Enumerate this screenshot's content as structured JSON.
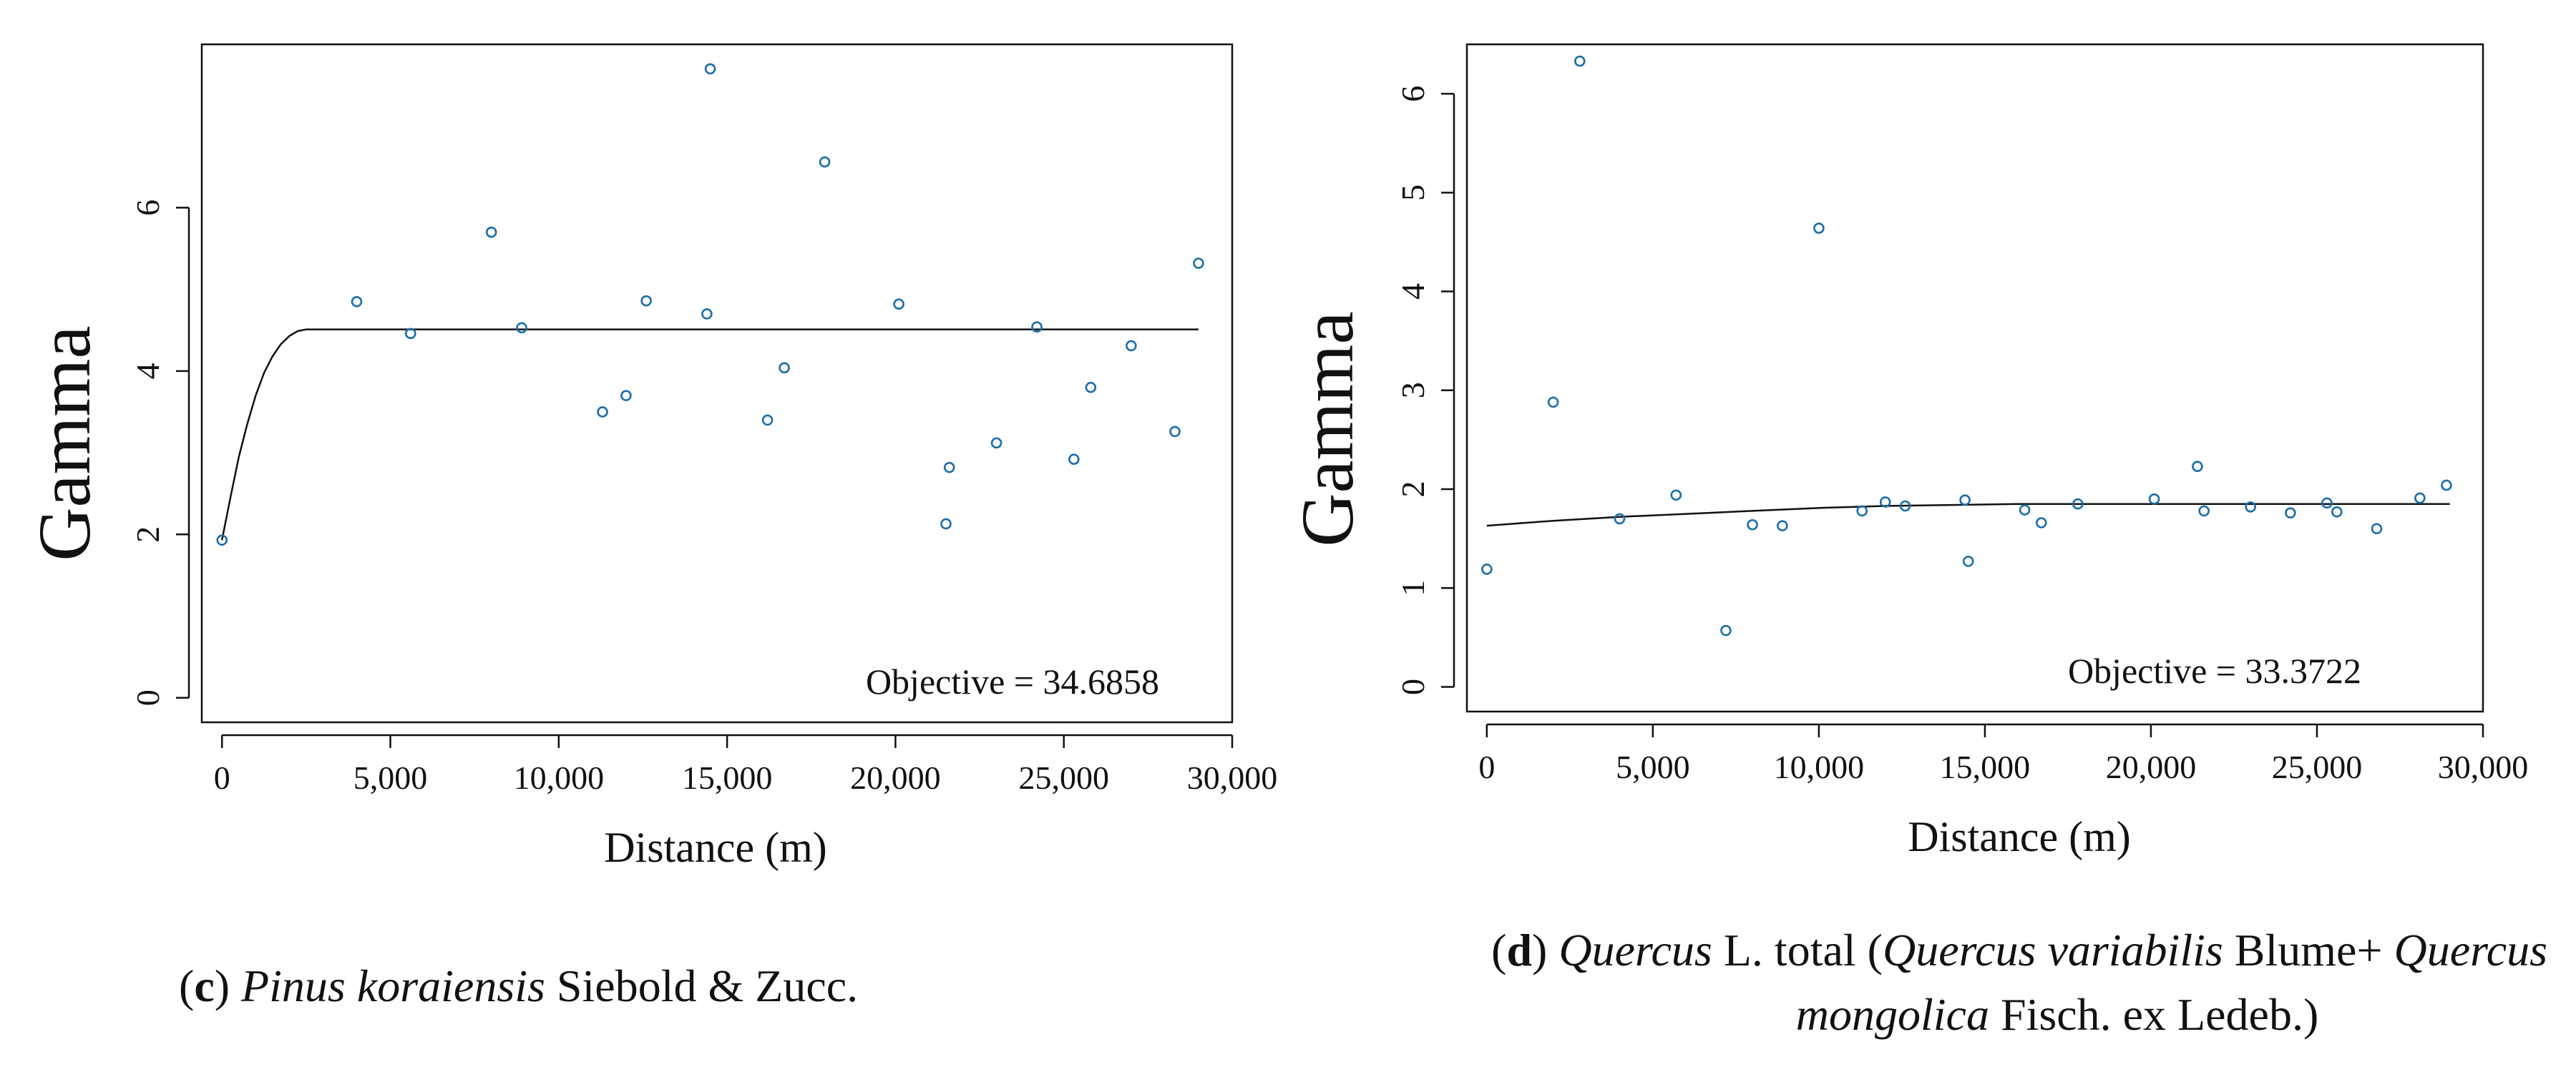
{
  "chart_data": [
    {
      "type": "scatter",
      "panel": "c",
      "xlabel": "Distance (m)",
      "ylabel": "Gamma",
      "xlim": [
        -600,
        30000
      ],
      "ylim": [
        -0.3,
        8.0
      ],
      "xticks": [
        0,
        5000,
        10000,
        15000,
        20000,
        25000,
        30000
      ],
      "xtick_labels": [
        "0",
        "5,000",
        "10,000",
        "15,000",
        "20,000",
        "25,000",
        "30,000"
      ],
      "yticks": [
        0,
        2,
        4,
        6
      ],
      "ytick_labels": [
        "0",
        "2",
        "4",
        "6"
      ],
      "annotation": "Objective = 34.6858",
      "points": {
        "x": [
          0,
          4000,
          5600,
          8000,
          8900,
          11300,
          12000,
          12600,
          14400,
          14500,
          16200,
          16700,
          17900,
          20100,
          21500,
          21600,
          23000,
          24200,
          25300,
          25800,
          27000,
          28300,
          29000
        ],
        "y": [
          1.93,
          4.85,
          4.46,
          5.7,
          4.53,
          3.5,
          3.7,
          4.86,
          4.7,
          7.7,
          3.4,
          4.04,
          6.56,
          4.82,
          2.13,
          2.82,
          3.12,
          4.54,
          2.92,
          3.8,
          4.31,
          3.26,
          5.32
        ]
      },
      "model": {
        "name": "fitted variogram",
        "x": [
          0,
          250,
          500,
          750,
          1000,
          1250,
          1500,
          1750,
          2000,
          2250,
          2500,
          2750,
          29000
        ],
        "y": [
          1.93,
          2.45,
          2.95,
          3.35,
          3.7,
          3.98,
          4.18,
          4.33,
          4.43,
          4.49,
          4.51,
          4.51,
          4.51
        ]
      }
    },
    {
      "type": "scatter",
      "panel": "d",
      "xlabel": "Distance (m)",
      "ylabel": "Gamma",
      "xlim": [
        -600,
        30000
      ],
      "ylim": [
        -0.25,
        6.5
      ],
      "xticks": [
        0,
        5000,
        10000,
        15000,
        20000,
        25000,
        30000
      ],
      "xtick_labels": [
        "0",
        "5,000",
        "10,000",
        "15,000",
        "20,000",
        "25,000",
        "30,000"
      ],
      "yticks": [
        0,
        1,
        2,
        3,
        4,
        5,
        6
      ],
      "ytick_labels": [
        "0",
        "1",
        "2",
        "3",
        "4",
        "5",
        "6"
      ],
      "annotation": "Objective = 33.3722",
      "points": {
        "x": [
          0,
          2000,
          2800,
          4000,
          5700,
          7200,
          8000,
          8900,
          10000,
          11300,
          12000,
          12600,
          14400,
          14500,
          16200,
          16700,
          17800,
          20100,
          21400,
          21600,
          23000,
          24200,
          25300,
          25600,
          26800,
          28100,
          28900
        ],
        "y": [
          1.19,
          2.88,
          6.33,
          1.7,
          1.94,
          0.57,
          1.64,
          1.63,
          4.64,
          1.78,
          1.87,
          1.83,
          1.89,
          1.27,
          1.79,
          1.66,
          1.85,
          1.9,
          2.23,
          1.78,
          1.82,
          1.76,
          1.86,
          1.77,
          1.6,
          1.91,
          2.04
        ]
      },
      "model": {
        "name": "fitted variogram",
        "x": [
          0,
          2000,
          4000,
          6000,
          8000,
          10000,
          12000,
          14000,
          16000,
          18000,
          20000,
          29000
        ],
        "y": [
          1.63,
          1.68,
          1.72,
          1.75,
          1.78,
          1.81,
          1.83,
          1.84,
          1.85,
          1.85,
          1.85,
          1.85
        ]
      }
    }
  ],
  "captions": {
    "c": {
      "letter": "c",
      "taxon": "Pinus koraiensis",
      "author": " Siebold & Zucc."
    },
    "d": {
      "letter": "d",
      "genus": "Quercus",
      "line1_rest": " L. total (",
      "species1": "Quercus variabilis",
      "author1": " Blume+ ",
      "genus2": "Quercus",
      "species2_epithet": "mongolica",
      "author2": " Fisch. ex Ledeb.)"
    }
  },
  "colors": {
    "point": "#1a6fa8",
    "line": "#111111",
    "axis": "#111111"
  }
}
